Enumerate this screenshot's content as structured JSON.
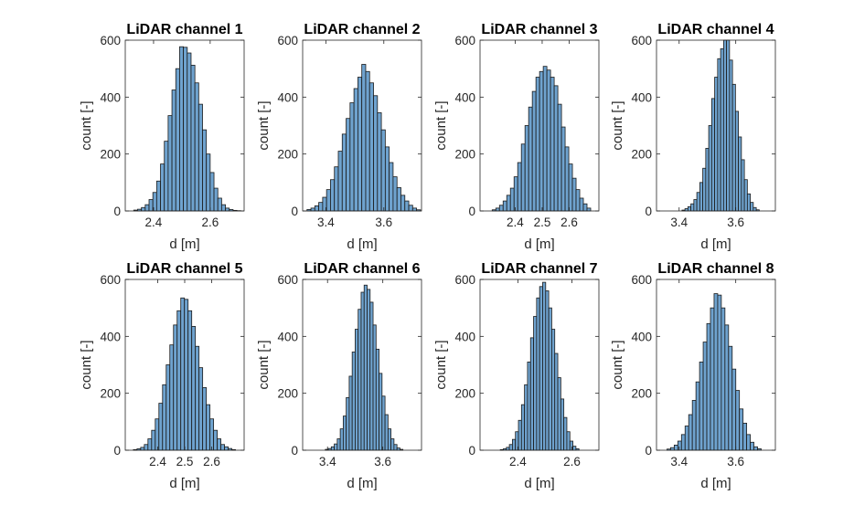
{
  "chart_data": [
    {
      "type": "bar",
      "title": "LiDAR channel 1",
      "xlabel": "d [m]",
      "ylabel": "count [-]",
      "xlim": [
        2.3,
        2.72
      ],
      "ylim": [
        0,
        600
      ],
      "xticks": [
        2.4,
        2.6
      ],
      "xtick_labels": [
        "2.4",
        "2.6"
      ],
      "yticks": [
        0,
        200,
        400,
        600
      ],
      "ytick_labels": [
        "0",
        "200",
        "400",
        "600"
      ],
      "bins_start": 2.33,
      "bin_width": 0.0135,
      "counts": [
        3,
        6,
        12,
        22,
        40,
        65,
        105,
        165,
        245,
        335,
        425,
        500,
        577,
        575,
        555,
        512,
        450,
        375,
        285,
        200,
        135,
        80,
        45,
        22,
        10,
        5,
        2,
        1
      ]
    },
    {
      "type": "bar",
      "title": "LiDAR channel 2",
      "xlabel": "d [m]",
      "ylabel": "count [-]",
      "xlim": [
        3.32,
        3.73
      ],
      "ylim": [
        0,
        600
      ],
      "xticks": [
        3.4,
        3.6
      ],
      "xtick_labels": [
        "3.4",
        "3.6"
      ],
      "yticks": [
        0,
        200,
        400,
        600
      ],
      "ytick_labels": [
        "0",
        "200",
        "400",
        "600"
      ],
      "bins_start": 3.335,
      "bin_width": 0.0135,
      "counts": [
        5,
        10,
        18,
        30,
        48,
        75,
        110,
        155,
        210,
        270,
        325,
        380,
        430,
        470,
        515,
        490,
        450,
        405,
        345,
        285,
        225,
        170,
        120,
        82,
        55,
        35,
        20,
        10,
        4
      ]
    },
    {
      "type": "bar",
      "title": "LiDAR channel 3",
      "xlabel": "d [m]",
      "ylabel": "count [-]",
      "xlim": [
        2.27,
        2.71
      ],
      "ylim": [
        0,
        600
      ],
      "xticks": [
        2.4,
        2.5,
        2.6
      ],
      "xtick_labels": [
        "2.4",
        "2.5",
        "2.6"
      ],
      "yticks": [
        0,
        200,
        400,
        600
      ],
      "ytick_labels": [
        "0",
        "200",
        "400",
        "600"
      ],
      "bins_start": 2.315,
      "bin_width": 0.0135,
      "counts": [
        4,
        10,
        20,
        35,
        55,
        80,
        120,
        170,
        235,
        300,
        365,
        420,
        470,
        490,
        508,
        495,
        470,
        440,
        375,
        295,
        225,
        165,
        115,
        75,
        45,
        25,
        10
      ]
    },
    {
      "type": "bar",
      "title": "LiDAR channel 4",
      "xlabel": "d [m]",
      "ylabel": "count [-]",
      "xlim": [
        3.32,
        3.74
      ],
      "ylim": [
        0,
        600
      ],
      "xticks": [
        3.4,
        3.6
      ],
      "xtick_labels": [
        "3.4",
        "3.6"
      ],
      "yticks": [
        0,
        200,
        400,
        600
      ],
      "ytick_labels": [
        "0",
        "200",
        "400",
        "600"
      ],
      "bins_start": 3.41,
      "bin_width": 0.0105,
      "counts": [
        3,
        8,
        15,
        25,
        40,
        65,
        100,
        150,
        220,
        300,
        395,
        470,
        535,
        570,
        600,
        605,
        530,
        445,
        350,
        260,
        180,
        110,
        60,
        30,
        12,
        4
      ]
    },
    {
      "type": "bar",
      "title": "LiDAR channel 5",
      "xlabel": "d [m]",
      "ylabel": "count [-]",
      "xlim": [
        2.28,
        2.72
      ],
      "ylim": [
        0,
        600
      ],
      "xticks": [
        2.4,
        2.5,
        2.6
      ],
      "xtick_labels": [
        "2.4",
        "2.5",
        "2.6"
      ],
      "yticks": [
        0,
        200,
        400,
        600
      ],
      "ytick_labels": [
        "0",
        "200",
        "400",
        "600"
      ],
      "bins_start": 2.31,
      "bin_width": 0.0135,
      "counts": [
        2,
        5,
        10,
        20,
        40,
        70,
        110,
        165,
        230,
        300,
        370,
        440,
        490,
        535,
        530,
        490,
        435,
        365,
        290,
        220,
        160,
        110,
        70,
        40,
        20,
        12,
        6,
        2
      ]
    },
    {
      "type": "bar",
      "title": "LiDAR channel 6",
      "xlabel": "d [m]",
      "ylabel": "count [-]",
      "xlim": [
        3.31,
        3.74
      ],
      "ylim": [
        0,
        600
      ],
      "xticks": [
        3.4,
        3.6
      ],
      "xtick_labels": [
        "3.4",
        "3.6"
      ],
      "yticks": [
        0,
        200,
        400,
        600
      ],
      "ytick_labels": [
        "0",
        "200",
        "400",
        "600"
      ],
      "bins_start": 3.392,
      "bin_width": 0.0108,
      "counts": [
        3,
        6,
        12,
        22,
        40,
        75,
        120,
        185,
        260,
        345,
        425,
        495,
        555,
        580,
        565,
        520,
        440,
        355,
        270,
        190,
        125,
        75,
        40,
        20,
        8,
        3
      ]
    },
    {
      "type": "bar",
      "title": "LiDAR channel 7",
      "xlabel": "d [m]",
      "ylabel": "count [-]",
      "xlim": [
        2.26,
        2.7
      ],
      "ylim": [
        0,
        600
      ],
      "xticks": [
        2.4,
        2.6
      ],
      "xtick_labels": [
        "2.4",
        "2.6"
      ],
      "yticks": [
        0,
        200,
        400,
        600
      ],
      "ytick_labels": [
        "0",
        "200",
        "400",
        "600"
      ],
      "bins_start": 2.335,
      "bin_width": 0.0112,
      "counts": [
        2,
        5,
        10,
        20,
        38,
        65,
        105,
        160,
        230,
        310,
        395,
        470,
        535,
        575,
        590,
        560,
        500,
        425,
        340,
        255,
        180,
        115,
        65,
        32,
        14,
        5
      ]
    },
    {
      "type": "bar",
      "title": "LiDAR channel 8",
      "xlabel": "d [m]",
      "ylabel": "count [-]",
      "xlim": [
        3.32,
        3.74
      ],
      "ylim": [
        0,
        600
      ],
      "xticks": [
        3.4,
        3.6
      ],
      "xtick_labels": [
        "3.4",
        "3.6"
      ],
      "yticks": [
        0,
        200,
        400,
        600
      ],
      "ytick_labels": [
        "0",
        "200",
        "400",
        "600"
      ],
      "bins_start": 3.357,
      "bin_width": 0.0128,
      "counts": [
        4,
        9,
        18,
        32,
        55,
        85,
        125,
        175,
        240,
        310,
        380,
        445,
        500,
        550,
        545,
        500,
        440,
        365,
        285,
        210,
        145,
        95,
        55,
        28,
        12,
        5
      ]
    }
  ]
}
